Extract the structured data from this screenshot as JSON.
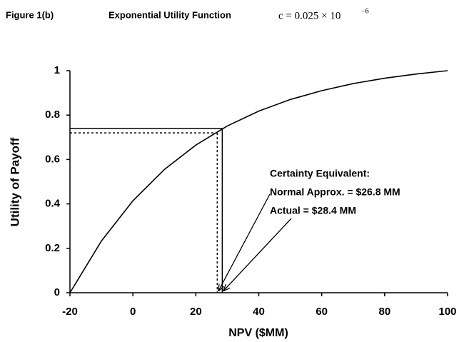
{
  "chart_data": {
    "type": "line",
    "figure_label": "Figure 1(b)",
    "title": "Exponential Utility Function",
    "title_formula": "c = 0.025 × 10",
    "title_formula_exponent": "−6",
    "xlabel": "NPV ($MM)",
    "ylabel": "Utility of Payoff",
    "x": [
      -20,
      -10,
      0,
      10,
      20,
      30,
      40,
      50,
      60,
      70,
      80,
      90,
      100
    ],
    "series": [
      {
        "color": "#000000",
        "values": [
          0,
          0.233,
          0.414,
          0.555,
          0.665,
          0.751,
          0.818,
          0.87,
          0.91,
          0.942,
          0.966,
          0.985,
          1
        ]
      }
    ],
    "reference_lines": [
      {
        "x": 28.4,
        "y": 0.74,
        "style": "solid"
      },
      {
        "x": 26.8,
        "y": 0.72,
        "style": "dotted"
      }
    ],
    "annotation": {
      "heading": "Certainty Equivalent:",
      "lines": [
        "Normal Approx. = $26.8 MM",
        "Actual = $28.4 MM"
      ]
    },
    "xlim": [
      -20,
      100
    ],
    "xticks": [
      -20,
      0,
      20,
      40,
      60,
      80,
      100
    ],
    "ylim": [
      0,
      1
    ],
    "yticks": [
      0,
      0.2,
      0.4,
      0.6,
      0.8,
      1
    ],
    "grid": false
  }
}
